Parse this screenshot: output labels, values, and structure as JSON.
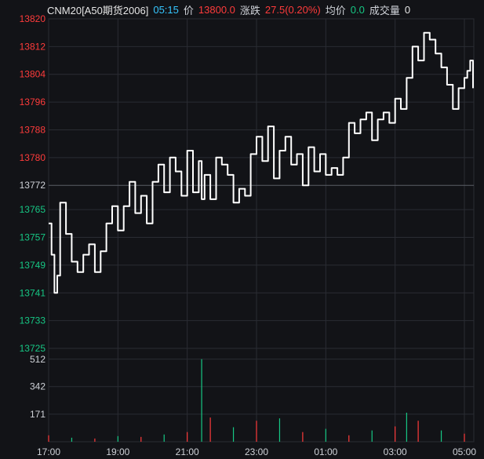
{
  "header": {
    "symbol": "CNM20[A50期货2006]",
    "time": "05:15",
    "price_label": "价",
    "price": "13800.0",
    "change_label": "涨跌",
    "change": "27.5(0.20%)",
    "avg_label": "均价",
    "avg": "0.0",
    "volume_label": "成交量",
    "volume": "0"
  },
  "colors": {
    "background": "#121317",
    "grid": "#2a2c33",
    "up": "#ff3b3b",
    "down": "#16c784",
    "line": "#ffffff",
    "axis_text_neutral": "#cfd2d8"
  },
  "chart_data": [
    {
      "type": "line",
      "title": "",
      "xlabel": "",
      "ylabel": "",
      "y_ticks": [
        13820,
        13812,
        13804,
        13796,
        13788,
        13780,
        13772,
        13765,
        13757,
        13749,
        13741,
        13733,
        13725
      ],
      "reference_price": 13772,
      "ylim": [
        13725,
        13820
      ],
      "x_ticks": [
        "17:00",
        "19:00",
        "21:00",
        "23:00",
        "01:00",
        "03:00",
        "05:00"
      ],
      "x_times": [
        "17:00",
        "17:05",
        "17:10",
        "17:15",
        "17:20",
        "17:30",
        "17:40",
        "17:50",
        "18:00",
        "18:10",
        "18:20",
        "18:30",
        "18:40",
        "18:50",
        "19:00",
        "19:10",
        "19:20",
        "19:30",
        "19:40",
        "19:50",
        "20:00",
        "20:10",
        "20:20",
        "20:30",
        "20:40",
        "20:50",
        "21:00",
        "21:10",
        "21:20",
        "21:25",
        "21:30",
        "21:40",
        "21:50",
        "22:00",
        "22:10",
        "22:20",
        "22:30",
        "22:40",
        "22:50",
        "23:00",
        "23:10",
        "23:20",
        "23:30",
        "23:40",
        "23:50",
        "00:00",
        "00:10",
        "00:20",
        "00:30",
        "00:40",
        "00:50",
        "01:00",
        "01:10",
        "01:20",
        "01:30",
        "01:40",
        "01:50",
        "02:00",
        "02:10",
        "02:20",
        "02:30",
        "02:40",
        "02:50",
        "03:00",
        "03:10",
        "03:20",
        "03:30",
        "03:40",
        "03:50",
        "04:00",
        "04:10",
        "04:20",
        "04:30",
        "04:40",
        "04:50",
        "05:00",
        "05:05",
        "05:10",
        "05:15"
      ],
      "series": [
        {
          "values": [
            13761,
            13752,
            13741,
            13746,
            13767,
            13758,
            13750,
            13747,
            13752,
            13755,
            13747,
            13753,
            13761,
            13766,
            13759,
            13766,
            13773,
            13764,
            13769,
            13761,
            13773,
            13778,
            13770,
            13780,
            13776,
            13769,
            13782,
            13770,
            13779,
            13768,
            13775,
            13768,
            13780,
            13778,
            13775,
            13767,
            13771,
            13769,
            13781,
            13786,
            13779,
            13789,
            13774,
            13782,
            13786,
            13778,
            13781,
            13772,
            13783,
            13776,
            13781,
            13775,
            13777,
            13775,
            13780,
            13790,
            13787,
            13791,
            13793,
            13785,
            13791,
            13793,
            13790,
            13797,
            13794,
            13803,
            13812,
            13808,
            13816,
            13814,
            13810,
            13806,
            13801,
            13794,
            13800,
            13803,
            13805,
            13808,
            13800
          ]
        }
      ]
    },
    {
      "type": "bar",
      "title": "",
      "y_ticks": [
        512,
        342,
        171
      ],
      "ylim": [
        0,
        540
      ],
      "x_ticks": [
        "17:00",
        "19:00",
        "21:00",
        "23:00",
        "01:00",
        "03:00",
        "05:00"
      ],
      "x_times": [
        "17:00",
        "17:40",
        "18:20",
        "19:00",
        "19:40",
        "20:20",
        "21:00",
        "21:25",
        "21:40",
        "22:20",
        "23:00",
        "23:40",
        "00:20",
        "01:00",
        "01:40",
        "02:20",
        "03:00",
        "03:20",
        "03:40",
        "04:20",
        "05:00"
      ],
      "series": [
        {
          "name": "",
          "values": [
            40,
            25,
            20,
            35,
            30,
            45,
            60,
            512,
            150,
            90,
            130,
            145,
            60,
            80,
            40,
            70,
            95,
            180,
            130,
            70,
            50
          ]
        }
      ]
    }
  ]
}
